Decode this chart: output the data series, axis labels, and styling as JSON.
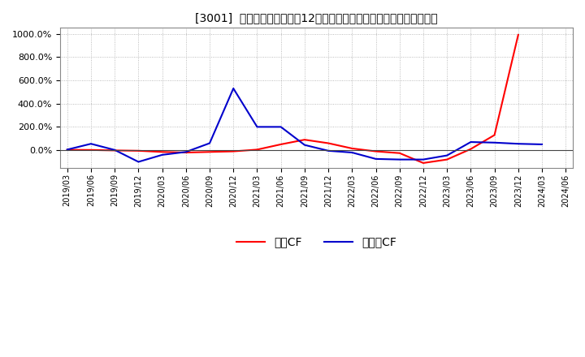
{
  "title": "[3001]  キャッシュフローの12か月移動合計の対前年同期増減率の推移",
  "ylim": [
    -150,
    1050
  ],
  "yticks": [
    0,
    200,
    400,
    600,
    800,
    1000
  ],
  "background_color": "#ffffff",
  "plot_bg_color": "#ffffff",
  "grid_color": "#aaaaaa",
  "legend_labels": [
    "営業CF",
    "フリーCF"
  ],
  "line_colors": [
    "#ff0000",
    "#0000cc"
  ],
  "dates": [
    "2019/03",
    "2019/06",
    "2019/09",
    "2019/12",
    "2020/03",
    "2020/06",
    "2020/09",
    "2020/12",
    "2021/03",
    "2021/06",
    "2021/09",
    "2021/12",
    "2022/03",
    "2022/06",
    "2022/09",
    "2022/12",
    "2023/03",
    "2023/06",
    "2023/09",
    "2023/12",
    "2024/03",
    "2024/06"
  ],
  "eigyo_cf": [
    3.0,
    2.0,
    -2.0,
    -5.0,
    -15.0,
    -20.0,
    -15.0,
    -10.0,
    5.0,
    50.0,
    90.0,
    60.0,
    15.0,
    -10.0,
    -25.0,
    -110.0,
    -80.0,
    10.0,
    130.0,
    990.0,
    null,
    null
  ],
  "free_cf": [
    5.0,
    55.0,
    2.0,
    -100.0,
    -40.0,
    -15.0,
    60.0,
    530.0,
    200.0,
    200.0,
    45.0,
    -5.0,
    -20.0,
    -75.0,
    -80.0,
    -80.0,
    -45.0,
    70.0,
    65.0,
    55.0,
    50.0,
    null
  ]
}
